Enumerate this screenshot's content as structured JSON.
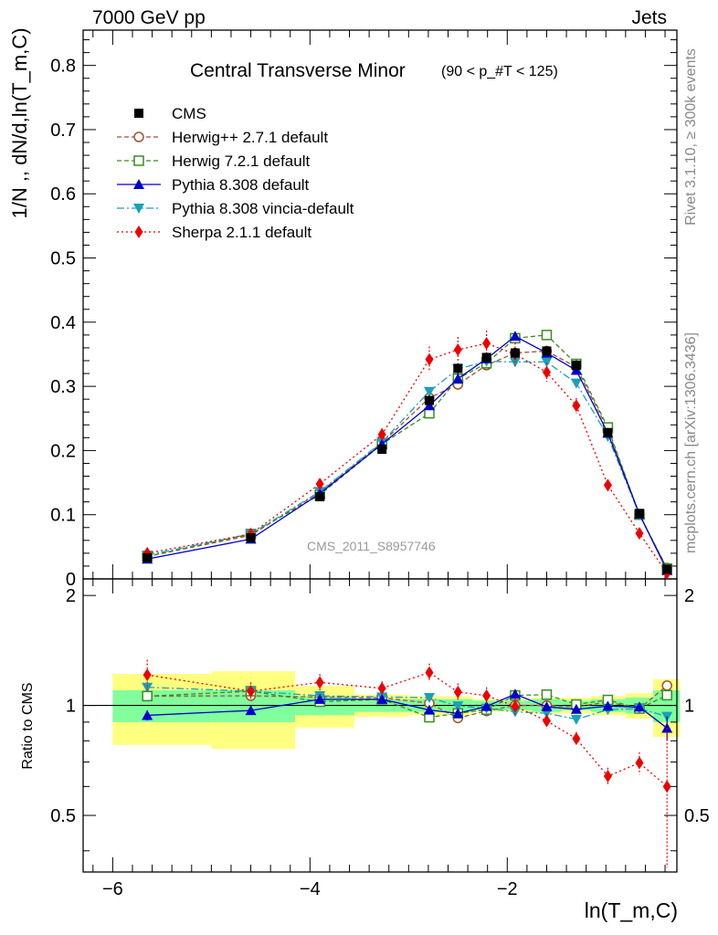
{
  "header": {
    "left": "7000 GeV pp",
    "right": "Jets"
  },
  "side_labels": {
    "rivet": "Rivet 3.1.10, ≥ 300k events",
    "mcplots": "mcplots.cern.ch [arXiv:1306.3436]"
  },
  "chart_data": {
    "type": "line",
    "title": "Central Transverse Minor",
    "title_suffix": "(90 < p_#T < 125)",
    "watermark": "CMS_2011_S8957746",
    "xlabel": "ln(T_m,C)",
    "ylabel": "1/N ,, dN/d,ln(T_m,C)",
    "ratio_ylabel": "Ratio to CMS",
    "xlim": [
      -6.3,
      -0.28
    ],
    "ylim": [
      0,
      0.855
    ],
    "ratio_ylim": [
      0.35,
      2.22
    ],
    "x_ticks": [
      -6,
      -4,
      -2
    ],
    "y_ticks": [
      0,
      0.1,
      0.2,
      0.3,
      0.4,
      0.5,
      0.6,
      0.7,
      0.8
    ],
    "ratio_y_ticks": [
      0.5,
      1,
      2
    ],
    "legend_position": "top-left",
    "x": [
      -5.65,
      -4.6,
      -3.9,
      -3.27,
      -2.79,
      -2.5,
      -2.21,
      -1.92,
      -1.6,
      -1.3,
      -0.98,
      -0.66,
      -0.38
    ],
    "bins": [
      [
        -6.0,
        -5.0
      ],
      [
        -5.0,
        -4.15
      ],
      [
        -4.15,
        -3.55
      ],
      [
        -3.55,
        -3.0
      ],
      [
        -3.0,
        -2.6
      ],
      [
        -2.6,
        -2.35
      ],
      [
        -2.35,
        -2.05
      ],
      [
        -2.05,
        -1.75
      ],
      [
        -1.75,
        -1.45
      ],
      [
        -1.45,
        -1.15
      ],
      [
        -1.15,
        -0.8
      ],
      [
        -0.8,
        -0.52
      ],
      [
        -0.52,
        -0.25
      ]
    ],
    "band_inner": [
      0.1,
      0.1,
      0.06,
      0.04,
      0.04,
      0.04,
      0.03,
      0.03,
      0.04,
      0.03,
      0.04,
      0.05,
      0.1
    ],
    "band_outer": [
      0.22,
      0.24,
      0.13,
      0.07,
      0.06,
      0.06,
      0.04,
      0.04,
      0.05,
      0.05,
      0.06,
      0.08,
      0.18
    ],
    "series": [
      {
        "name": "CMS",
        "color": "#000000",
        "dash": "",
        "marker": "square-filled",
        "values": [
          0.033,
          0.064,
          0.128,
          0.202,
          0.278,
          0.328,
          0.345,
          0.352,
          0.355,
          0.333,
          0.228,
          0.102,
          0.015
        ],
        "errors": [
          0.003,
          0.004,
          0.006,
          0.007,
          0.008,
          0.008,
          0.008,
          0.008,
          0.008,
          0.008,
          0.007,
          0.005,
          0.003
        ]
      },
      {
        "name": "Herwig++ 2.7.1 default",
        "color": "#a0522d",
        "dash": "5,3",
        "marker": "circle-open",
        "values": [
          0.035,
          0.068,
          0.135,
          0.212,
          0.282,
          0.303,
          0.333,
          0.352,
          0.355,
          0.33,
          0.233,
          0.1,
          0.017
        ],
        "errors": []
      },
      {
        "name": "Herwig 7.2.1 default",
        "color": "#3a8c1e",
        "dash": "5,3",
        "marker": "square-open",
        "values": [
          0.035,
          0.07,
          0.131,
          0.21,
          0.258,
          0.312,
          0.336,
          0.375,
          0.38,
          0.335,
          0.236,
          0.1,
          0.016
        ],
        "errors": []
      },
      {
        "name": "Pythia 8.308 default",
        "color": "#0000cc",
        "dash": "",
        "marker": "triangle-up",
        "values": [
          0.031,
          0.062,
          0.133,
          0.21,
          0.27,
          0.312,
          0.343,
          0.378,
          0.352,
          0.325,
          0.227,
          0.101,
          0.013
        ],
        "errors": [
          0.001,
          0.001,
          0.002,
          0.002,
          0.003,
          0.003,
          0.003,
          0.003,
          0.003,
          0.003,
          0.003,
          0.002,
          0.001
        ]
      },
      {
        "name": "Pythia 8.308 vincia-default",
        "color": "#1aa0b8",
        "dash": "8,3,2,3",
        "marker": "triangle-down",
        "values": [
          0.037,
          0.07,
          0.136,
          0.213,
          0.292,
          0.327,
          0.339,
          0.338,
          0.338,
          0.305,
          0.222,
          0.1,
          0.014
        ],
        "errors": []
      },
      {
        "name": "Sherpa 2.1.1 default",
        "color": "#ee0000",
        "dash": "2,3",
        "marker": "diamond",
        "values": [
          0.04,
          0.07,
          0.148,
          0.225,
          0.342,
          0.357,
          0.367,
          0.35,
          0.322,
          0.27,
          0.146,
          0.071,
          0.009
        ],
        "errors": [
          0.004,
          0.004,
          0.008,
          0.01,
          0.02,
          0.02,
          0.02,
          0.018,
          0.015,
          0.012,
          0.008,
          0.005,
          0.004
        ]
      }
    ]
  }
}
